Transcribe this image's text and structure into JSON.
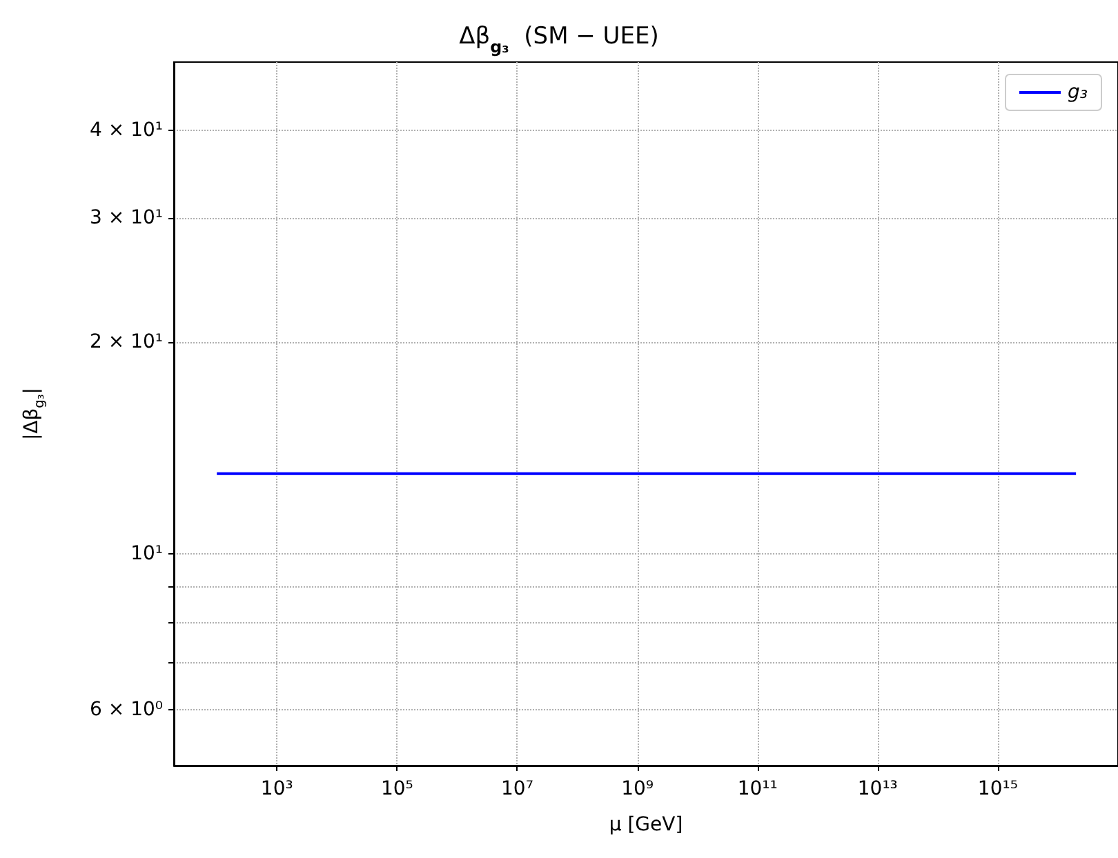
{
  "chart_data": {
    "type": "line",
    "title": "Δβ$_{g₃}$  (SM − UEE)",
    "xlabel": "μ [GeV]",
    "ylabel": "|Δβ$_{g₃}$|",
    "log": "xy",
    "grid": true,
    "legend": "top right",
    "marker": "none",
    "line_style": "solid",
    "xlim": [
      19.3,
      1e+17
    ],
    "ylim": [
      5,
      50
    ],
    "xticks": [
      {
        "value": 1000.0,
        "label": "10³"
      },
      {
        "value": 100000.0,
        "label": "10⁵"
      },
      {
        "value": 10000000.0,
        "label": "10⁷"
      },
      {
        "value": 1000000000.0,
        "label": "10⁹"
      },
      {
        "value": 100000000000.0,
        "label": "10¹¹"
      },
      {
        "value": 10000000000000.0,
        "label": "10¹³"
      },
      {
        "value": 1000000000000000.0,
        "label": "10¹⁵"
      }
    ],
    "yticks": [
      {
        "value": 6,
        "label": "6 × 10⁰"
      },
      {
        "value": 7,
        "label": null
      },
      {
        "value": 8,
        "label": null
      },
      {
        "value": 9,
        "label": null
      },
      {
        "value": 10,
        "label": "10¹"
      },
      {
        "value": 20,
        "label": "2 × 10¹"
      },
      {
        "value": 30,
        "label": "3 × 10¹"
      },
      {
        "value": 40,
        "label": "4 × 10¹"
      }
    ],
    "series": [
      {
        "name": "g₃",
        "color": "#0000ff",
        "x": [
          100,
          2e+16
        ],
        "values": [
          13,
          13
        ]
      }
    ]
  }
}
